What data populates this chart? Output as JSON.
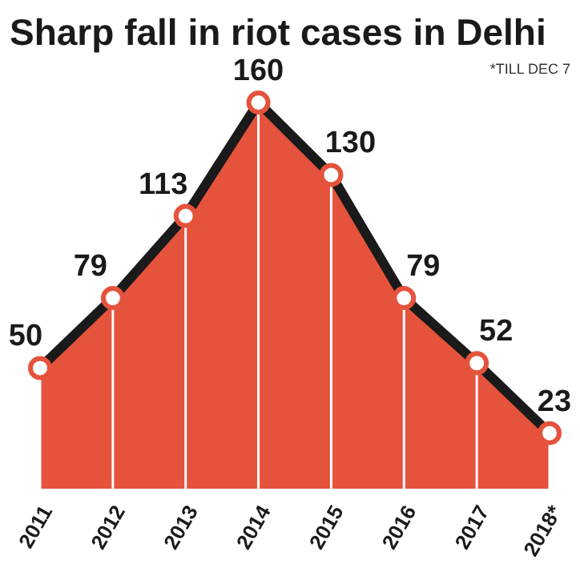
{
  "chart_data": {
    "type": "area",
    "title": "Sharp fall in riot cases in Delhi",
    "annotations": [
      "*TILL DEC 7"
    ],
    "categories": [
      "2011",
      "2012",
      "2013",
      "2014",
      "2015",
      "2016",
      "2017",
      "2018*"
    ],
    "series": [
      {
        "color": "#e5533c",
        "values": [
          50,
          79,
          113,
          160,
          130,
          79,
          52,
          23
        ]
      }
    ],
    "data_labels": true,
    "grid": "x",
    "marker": "circle",
    "line_style": "solid"
  }
}
